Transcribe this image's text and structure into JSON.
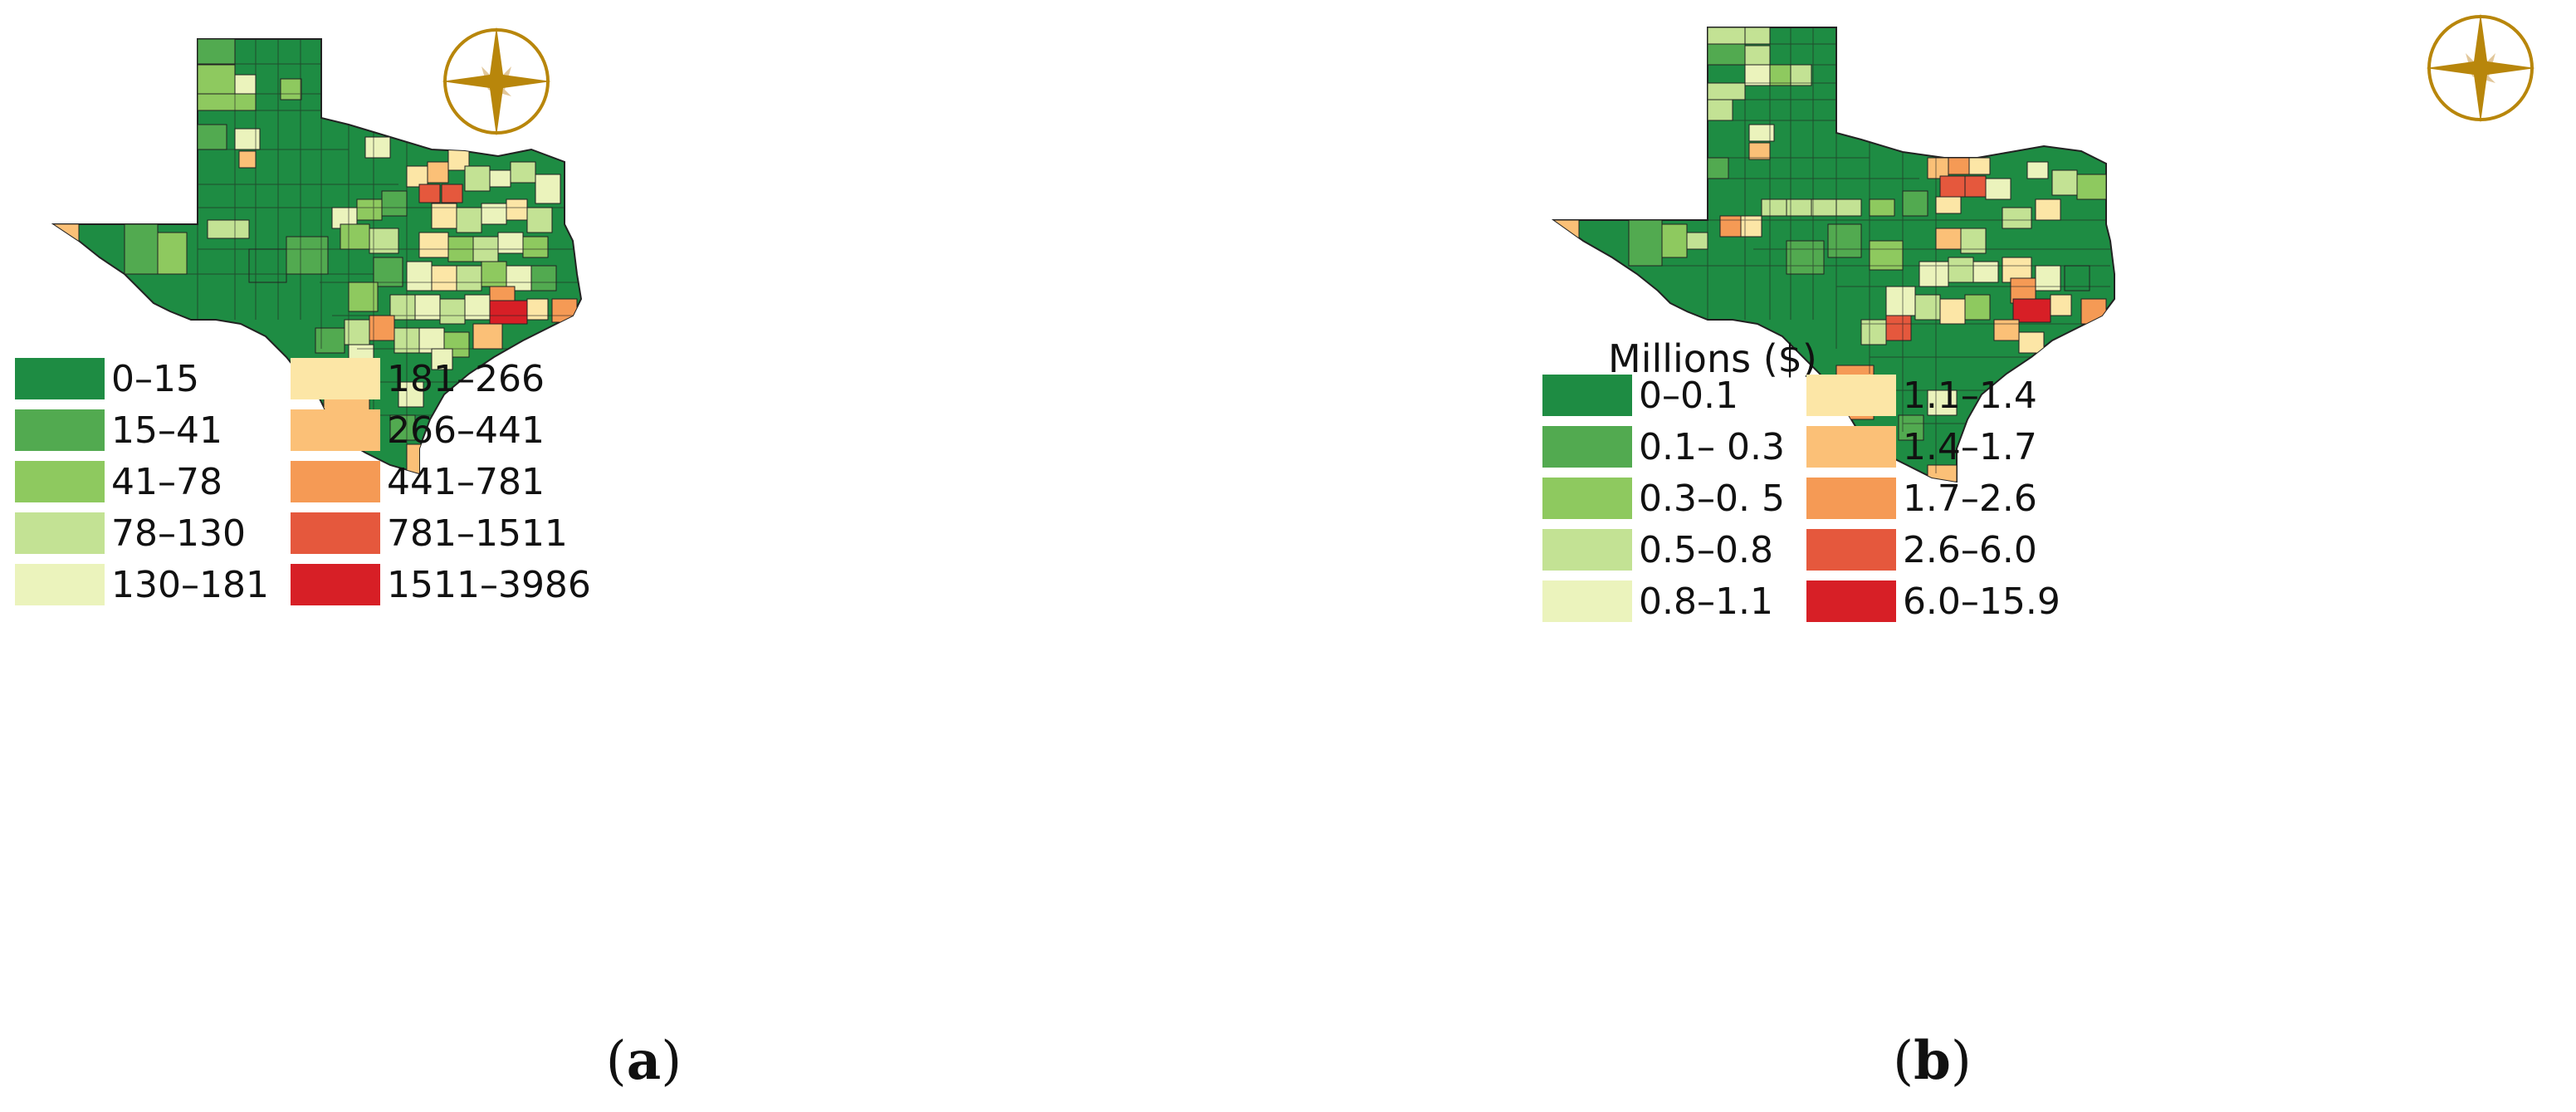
{
  "colors": {
    "c1": "#1e8c43",
    "c2": "#52aa50",
    "c3": "#8ec95f",
    "c4": "#c3e294",
    "c5": "#ebf3bc",
    "c6": "#fce6a6",
    "c7": "#fbc077",
    "c8": "#f59a55",
    "c9": "#e5583d",
    "c10": "#d71f26",
    "compass": "#b8860b",
    "compass_light": "#e2c79a"
  },
  "panels": [
    {
      "caption": "a",
      "legend_title": "",
      "legend": [
        "0–15",
        "15–41",
        "41–78",
        "78–130",
        "130–181",
        "181–266",
        "266–441",
        "441–781",
        "781–1511",
        "1511–3986"
      ]
    },
    {
      "caption": "b",
      "legend_title": "Millions ($)",
      "legend": [
        "0–0.1",
        "0.1– 0.3",
        "0.3–0. 5",
        "0.5–0.8",
        "0.8–1.1",
        "1.1–1.4",
        "1.4–1.7",
        "1.7–2.6",
        "2.6–6.0",
        "6.0–15.9"
      ]
    }
  ]
}
